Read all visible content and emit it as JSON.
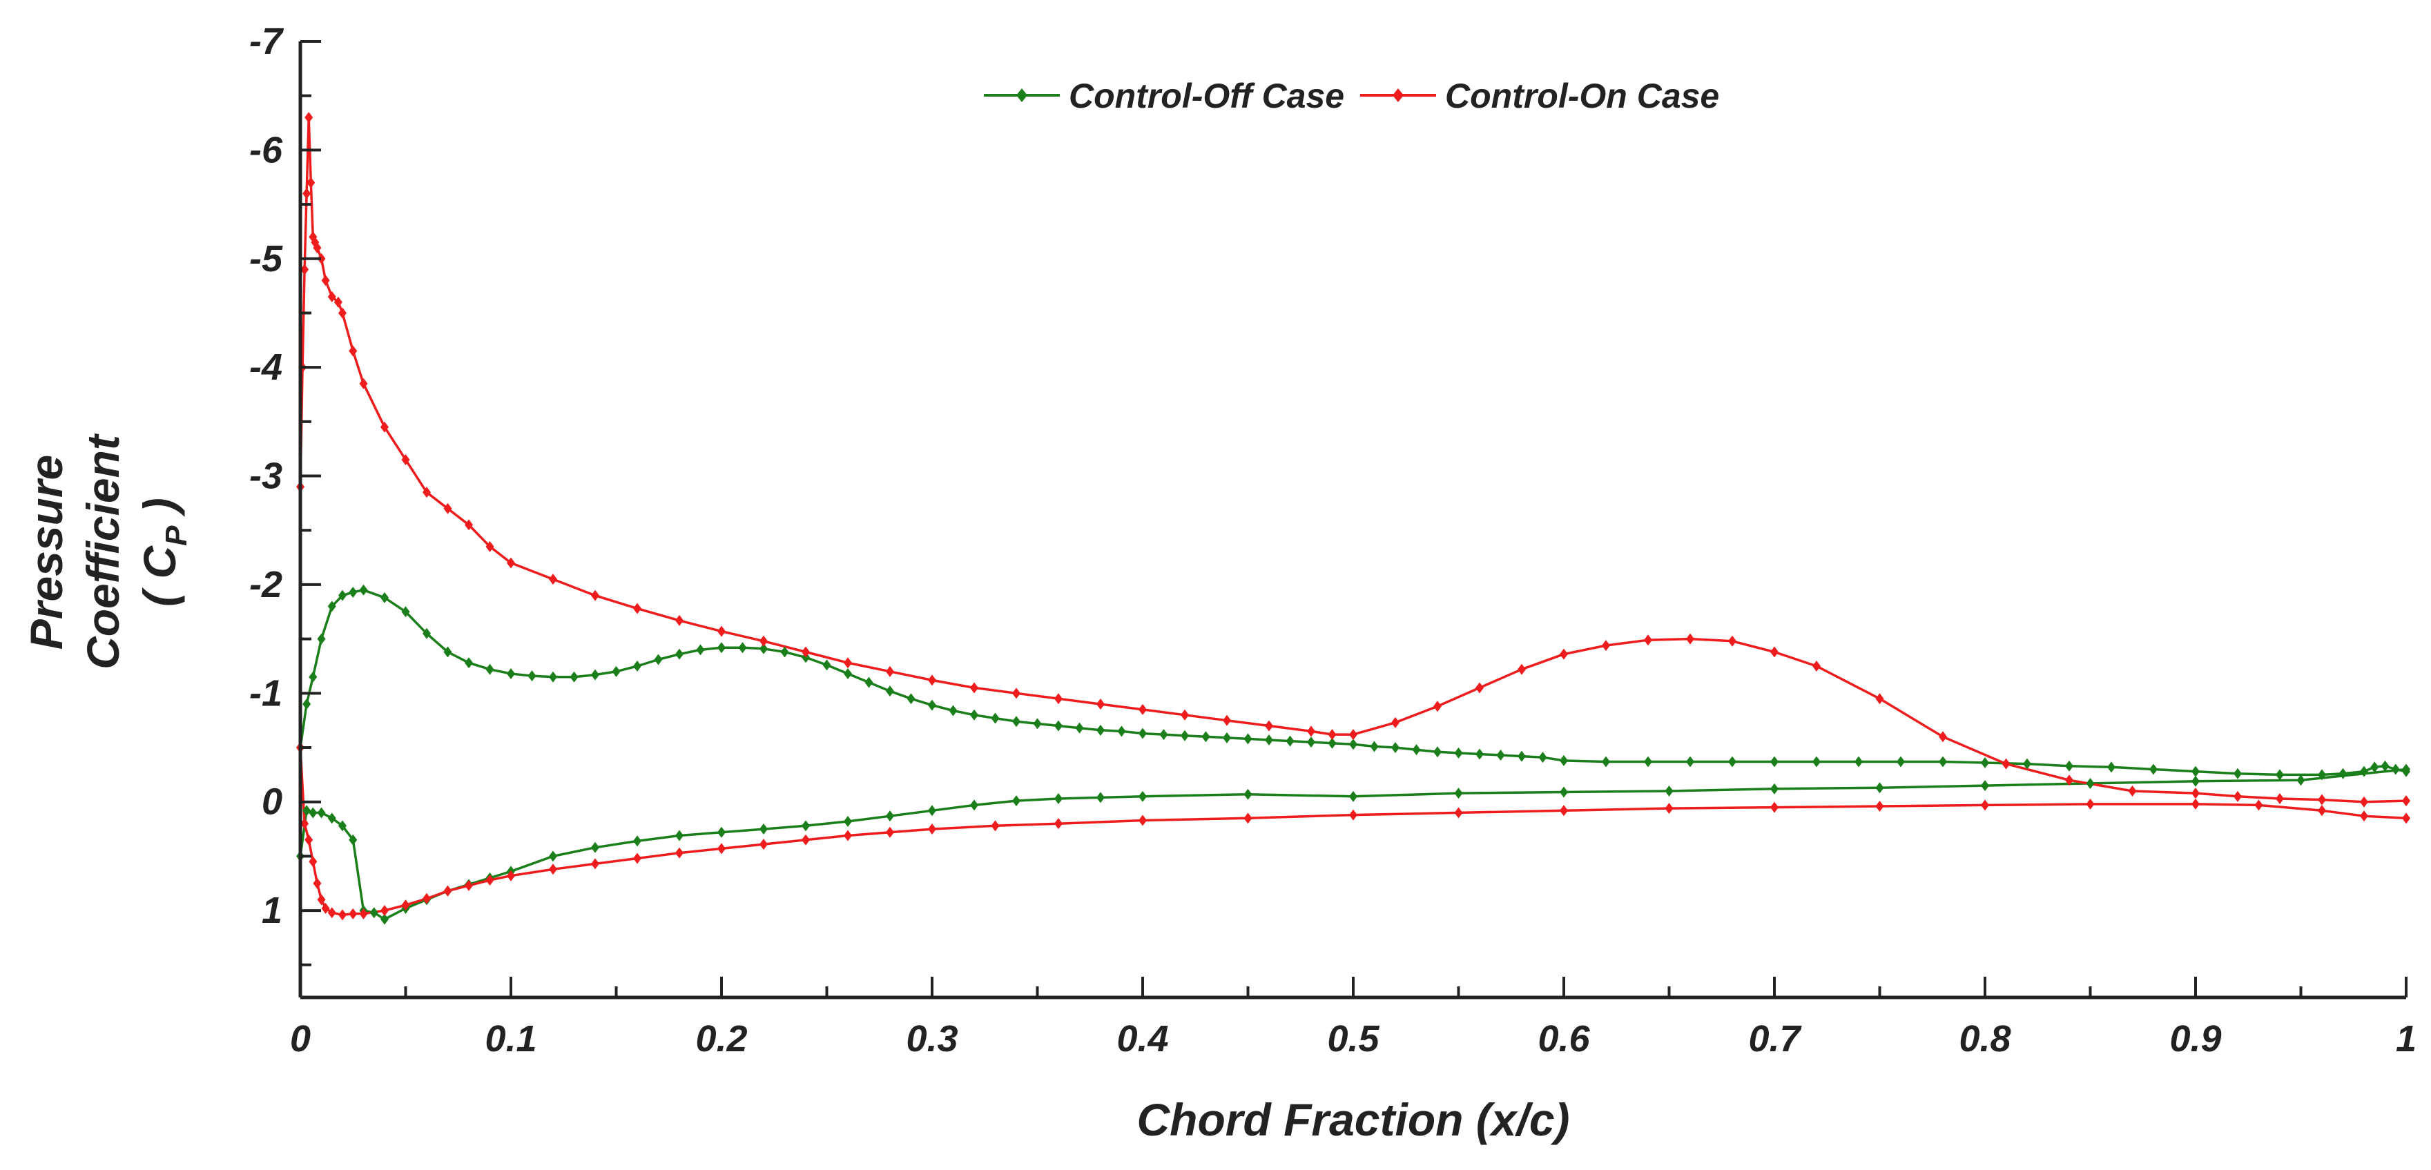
{
  "chart_data": {
    "type": "line",
    "title": "",
    "xlabel": "Chord Fraction (x/c)",
    "ylabel_lines": [
      "Pressure",
      "Coefficient",
      "( C",
      "P",
      " )"
    ],
    "xlim": [
      0,
      1
    ],
    "ylim": [
      1.8,
      -7
    ],
    "y_inverted": true,
    "grid": false,
    "legend_position": "top-center",
    "x_ticks": [
      0,
      0.1,
      0.2,
      0.3,
      0.4,
      0.5,
      0.6,
      0.7,
      0.8,
      0.9,
      1
    ],
    "x_tick_labels": [
      "0",
      "0.1",
      "0.2",
      "0.3",
      "0.4",
      "0.5",
      "0.6",
      "0.7",
      "0.8",
      "0.9",
      "1"
    ],
    "y_ticks": [
      -7,
      -6,
      -5,
      -4,
      -3,
      -2,
      -1,
      0,
      1
    ],
    "y_tick_labels": [
      "-7",
      "-6",
      "-5",
      "-4",
      "-3",
      "-2",
      "-1",
      "0",
      "1"
    ],
    "series": [
      {
        "name": "Control-Off Case",
        "color": "#1a7f1a",
        "marker": "diamond",
        "upper": {
          "x": [
            0,
            0.003,
            0.006,
            0.01,
            0.015,
            0.02,
            0.025,
            0.03,
            0.04,
            0.05,
            0.06,
            0.07,
            0.08,
            0.09,
            0.1,
            0.11,
            0.12,
            0.13,
            0.14,
            0.15,
            0.16,
            0.17,
            0.18,
            0.19,
            0.2,
            0.21,
            0.22,
            0.23,
            0.24,
            0.25,
            0.26,
            0.27,
            0.28,
            0.29,
            0.3,
            0.31,
            0.32,
            0.33,
            0.34,
            0.35,
            0.36,
            0.37,
            0.38,
            0.39,
            0.4,
            0.41,
            0.42,
            0.43,
            0.44,
            0.45,
            0.46,
            0.47,
            0.48,
            0.49,
            0.5,
            0.51,
            0.52,
            0.53,
            0.54,
            0.55,
            0.56,
            0.57,
            0.58,
            0.59,
            0.6,
            0.62,
            0.64,
            0.66,
            0.68,
            0.7,
            0.72,
            0.74,
            0.76,
            0.78,
            0.8,
            0.82,
            0.84,
            0.86,
            0.88,
            0.9,
            0.92,
            0.94,
            0.96,
            0.97,
            0.98,
            0.985,
            0.99,
            0.995,
            1
          ],
          "y": [
            -0.5,
            -0.9,
            -1.15,
            -1.5,
            -1.8,
            -1.9,
            -1.93,
            -1.95,
            -1.88,
            -1.75,
            -1.55,
            -1.38,
            -1.28,
            -1.22,
            -1.18,
            -1.16,
            -1.15,
            -1.15,
            -1.17,
            -1.2,
            -1.25,
            -1.31,
            -1.36,
            -1.4,
            -1.42,
            -1.42,
            -1.41,
            -1.38,
            -1.33,
            -1.26,
            -1.18,
            -1.1,
            -1.02,
            -0.95,
            -0.89,
            -0.84,
            -0.8,
            -0.77,
            -0.74,
            -0.72,
            -0.7,
            -0.68,
            -0.66,
            -0.65,
            -0.63,
            -0.62,
            -0.61,
            -0.6,
            -0.59,
            -0.58,
            -0.57,
            -0.56,
            -0.55,
            -0.54,
            -0.53,
            -0.51,
            -0.5,
            -0.48,
            -0.46,
            -0.45,
            -0.44,
            -0.43,
            -0.42,
            -0.41,
            -0.38,
            -0.37,
            -0.37,
            -0.37,
            -0.37,
            -0.37,
            -0.37,
            -0.37,
            -0.37,
            -0.37,
            -0.36,
            -0.35,
            -0.33,
            -0.32,
            -0.3,
            -0.28,
            -0.26,
            -0.25,
            -0.25,
            -0.26,
            -0.28,
            -0.32,
            -0.33,
            -0.3,
            -0.28
          ]
        },
        "lower": {
          "x": [
            0,
            0.003,
            0.006,
            0.01,
            0.015,
            0.02,
            0.025,
            0.03,
            0.035,
            0.04,
            0.05,
            0.06,
            0.07,
            0.08,
            0.09,
            0.1,
            0.12,
            0.14,
            0.16,
            0.18,
            0.2,
            0.22,
            0.24,
            0.26,
            0.28,
            0.3,
            0.32,
            0.34,
            0.36,
            0.38,
            0.4,
            0.45,
            0.5,
            0.55,
            0.6,
            0.65,
            0.7,
            0.75,
            0.8,
            0.85,
            0.9,
            0.95,
            1
          ],
          "y": [
            0.5,
            0.08,
            0.1,
            0.1,
            0.15,
            0.22,
            0.35,
            1.0,
            1.02,
            1.08,
            0.98,
            0.9,
            0.82,
            0.76,
            0.7,
            0.64,
            0.5,
            0.42,
            0.36,
            0.31,
            0.28,
            0.25,
            0.22,
            0.18,
            0.13,
            0.08,
            0.03,
            -0.01,
            -0.03,
            -0.04,
            -0.05,
            -0.07,
            -0.05,
            -0.08,
            -0.09,
            -0.1,
            -0.12,
            -0.13,
            -0.15,
            -0.17,
            -0.19,
            -0.2,
            -0.3
          ]
        }
      },
      {
        "name": "Control-On Case",
        "color": "#ee1c1c",
        "marker": "diamond",
        "upper": {
          "x": [
            0,
            0.001,
            0.002,
            0.003,
            0.004,
            0.005,
            0.006,
            0.007,
            0.008,
            0.01,
            0.012,
            0.015,
            0.018,
            0.02,
            0.025,
            0.03,
            0.04,
            0.05,
            0.06,
            0.07,
            0.08,
            0.09,
            0.1,
            0.12,
            0.14,
            0.16,
            0.18,
            0.2,
            0.22,
            0.24,
            0.26,
            0.28,
            0.3,
            0.32,
            0.34,
            0.36,
            0.38,
            0.4,
            0.42,
            0.44,
            0.46,
            0.48,
            0.49,
            0.5,
            0.52,
            0.54,
            0.56,
            0.58,
            0.6,
            0.62,
            0.64,
            0.66,
            0.68,
            0.7,
            0.72,
            0.75,
            0.78,
            0.81,
            0.84,
            0.87,
            0.9,
            0.92,
            0.94,
            0.96,
            0.98,
            1
          ],
          "y": [
            -2.9,
            -4.0,
            -4.9,
            -5.6,
            -6.3,
            -5.7,
            -5.2,
            -5.15,
            -5.1,
            -5.0,
            -4.8,
            -4.65,
            -4.6,
            -4.5,
            -4.15,
            -3.85,
            -3.45,
            -3.15,
            -2.85,
            -2.7,
            -2.55,
            -2.35,
            -2.2,
            -2.05,
            -1.9,
            -1.78,
            -1.67,
            -1.57,
            -1.48,
            -1.38,
            -1.28,
            -1.2,
            -1.12,
            -1.05,
            -1.0,
            -0.95,
            -0.9,
            -0.85,
            -0.8,
            -0.75,
            -0.7,
            -0.65,
            -0.62,
            -0.62,
            -0.73,
            -0.88,
            -1.05,
            -1.22,
            -1.36,
            -1.44,
            -1.49,
            -1.5,
            -1.48,
            -1.38,
            -1.25,
            -0.95,
            -0.6,
            -0.35,
            -0.2,
            -0.1,
            -0.08,
            -0.05,
            -0.03,
            -0.02,
            0.0,
            -0.01
          ]
        },
        "lower": {
          "x": [
            0,
            0.002,
            0.004,
            0.006,
            0.008,
            0.01,
            0.012,
            0.015,
            0.02,
            0.025,
            0.03,
            0.04,
            0.05,
            0.06,
            0.07,
            0.08,
            0.09,
            0.1,
            0.12,
            0.14,
            0.16,
            0.18,
            0.2,
            0.22,
            0.24,
            0.26,
            0.28,
            0.3,
            0.33,
            0.36,
            0.4,
            0.45,
            0.5,
            0.55,
            0.6,
            0.65,
            0.7,
            0.75,
            0.8,
            0.85,
            0.9,
            0.93,
            0.96,
            0.98,
            1
          ],
          "y": [
            -0.5,
            0.2,
            0.35,
            0.55,
            0.75,
            0.9,
            0.98,
            1.02,
            1.04,
            1.03,
            1.03,
            1.0,
            0.95,
            0.89,
            0.82,
            0.77,
            0.72,
            0.68,
            0.62,
            0.57,
            0.52,
            0.47,
            0.43,
            0.39,
            0.35,
            0.31,
            0.28,
            0.25,
            0.22,
            0.2,
            0.17,
            0.15,
            0.12,
            0.1,
            0.08,
            0.06,
            0.05,
            0.04,
            0.03,
            0.02,
            0.02,
            0.03,
            0.08,
            0.13,
            0.15
          ]
        }
      }
    ]
  }
}
